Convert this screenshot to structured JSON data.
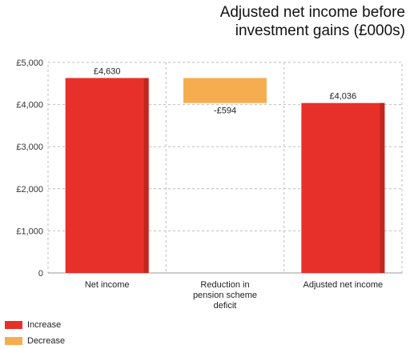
{
  "chart_data": {
    "type": "bar",
    "subtype": "waterfall",
    "title_lines": [
      "Adjusted net income before",
      "investment gains (£000s)"
    ],
    "categories": [
      [
        "Net income"
      ],
      [
        "Reduction in",
        "pension scheme",
        "deficit"
      ],
      [
        "Adjusted net income"
      ]
    ],
    "bars": [
      {
        "base": 0,
        "value": 4630,
        "label": "£4,630",
        "kind": "increase"
      },
      {
        "base": 4036,
        "value": 4630,
        "label": "-£594",
        "kind": "decrease"
      },
      {
        "base": 0,
        "value": 4036,
        "label": "£4,036",
        "kind": "increase"
      }
    ],
    "yticks": [
      {
        "v": 0,
        "label": "0"
      },
      {
        "v": 1000,
        "label": "£1,000"
      },
      {
        "v": 2000,
        "label": "£2,000"
      },
      {
        "v": 3000,
        "label": "£3,000"
      },
      {
        "v": 4000,
        "label": "£4,000"
      },
      {
        "v": 5000,
        "label": "£5,000"
      }
    ],
    "ylim": [
      0,
      5000
    ],
    "grid": true,
    "legend_placement": "bottom-left",
    "legend": [
      {
        "name": "Increase",
        "color": "#e8302a"
      },
      {
        "name": "Decrease",
        "color": "#f5ad4f"
      }
    ],
    "colors": {
      "increase": "#e8302a",
      "increase_edge": "#c2271f",
      "decrease": "#f5ad4f"
    }
  }
}
